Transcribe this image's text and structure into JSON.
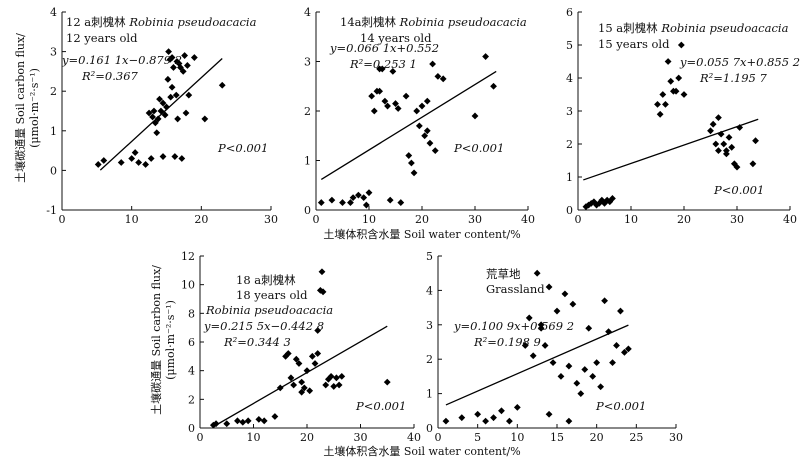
{
  "x_axis_label": "土壤体积含水量 Soil water content/%",
  "y_axis_label_line1": "土壤碳通量 Soil carbon flux/",
  "y_axis_label_line2": "(μmol·m⁻²·s⁻¹)",
  "chart_data": [
    {
      "type": "scatter",
      "panel": "12a",
      "title_cn": "12 a刺槐林",
      "title_latin": "Robinia pseudoacacia",
      "age_label": "12 years old",
      "equation": "y=0.161 1x−0.879 2",
      "r2": "R²=0.367",
      "p_value": "P<0.001",
      "xlim": [
        0,
        30
      ],
      "ylim": [
        -1,
        4
      ],
      "xticks": [
        0,
        10,
        20,
        30
      ],
      "yticks": [
        -1,
        0,
        1,
        2,
        3,
        4
      ],
      "fit": {
        "slope": 0.1611,
        "intercept": -0.8792,
        "x_range": [
          5.5,
          23
        ]
      },
      "points": [
        [
          5.2,
          0.15
        ],
        [
          6,
          0.25
        ],
        [
          8.5,
          0.2
        ],
        [
          10,
          0.3
        ],
        [
          10.5,
          0.45
        ],
        [
          11,
          0.2
        ],
        [
          12,
          0.15
        ],
        [
          12.5,
          1.45
        ],
        [
          12.8,
          0.3
        ],
        [
          13,
          1.35
        ],
        [
          13.2,
          1.5
        ],
        [
          13.4,
          1.2
        ],
        [
          13.6,
          0.95
        ],
        [
          13.8,
          1.3
        ],
        [
          14,
          1.8
        ],
        [
          14.2,
          1.5
        ],
        [
          14.5,
          1.7
        ],
        [
          14.8,
          1.4
        ],
        [
          15,
          1.6
        ],
        [
          15.2,
          2.3
        ],
        [
          15.3,
          3.0
        ],
        [
          15.5,
          2.8
        ],
        [
          15.6,
          1.85
        ],
        [
          15.8,
          2.1
        ],
        [
          16,
          2.6
        ],
        [
          16.2,
          0.35
        ],
        [
          16.4,
          1.9
        ],
        [
          16.6,
          1.3
        ],
        [
          16.8,
          2.7
        ],
        [
          17,
          2.6
        ],
        [
          17.2,
          0.3
        ],
        [
          17.4,
          2.5
        ],
        [
          17.6,
          2.9
        ],
        [
          17.8,
          1.45
        ],
        [
          18,
          2.65
        ],
        [
          18.2,
          1.9
        ],
        [
          19,
          2.85
        ],
        [
          20.5,
          1.3
        ],
        [
          23,
          2.15
        ],
        [
          14.5,
          0.35
        ],
        [
          15.8,
          2.85
        ],
        [
          16.5,
          2.75
        ]
      ]
    },
    {
      "type": "scatter",
      "panel": "14a",
      "title_cn": "14a刺槐林",
      "title_latin": "Robinia pseudoacacia",
      "age_label": "14 years old",
      "equation": "y=0.066 1x+0.552",
      "r2": "R²=0.253 1",
      "p_value": "P<0.001",
      "xlim": [
        0,
        40
      ],
      "ylim": [
        0,
        4
      ],
      "xticks": [
        0,
        10,
        20,
        30,
        40
      ],
      "yticks": [
        0,
        1,
        2,
        3,
        4
      ],
      "fit": {
        "slope": 0.0661,
        "intercept": 0.552,
        "x_range": [
          1,
          34
        ]
      },
      "points": [
        [
          1,
          0.15
        ],
        [
          3,
          0.2
        ],
        [
          5,
          0.15
        ],
        [
          6.5,
          0.15
        ],
        [
          7,
          0.25
        ],
        [
          8,
          0.3
        ],
        [
          9,
          0.25
        ],
        [
          9.5,
          0.1
        ],
        [
          10,
          0.35
        ],
        [
          10.5,
          2.3
        ],
        [
          11,
          2.0
        ],
        [
          11.5,
          2.4
        ],
        [
          12,
          2.85
        ],
        [
          12.5,
          2.85
        ],
        [
          13,
          2.2
        ],
        [
          13.5,
          2.1
        ],
        [
          14,
          0.2
        ],
        [
          14.5,
          2.8
        ],
        [
          15,
          2.15
        ],
        [
          15.5,
          2.05
        ],
        [
          16,
          0.15
        ],
        [
          17,
          2.3
        ],
        [
          17.5,
          1.1
        ],
        [
          18,
          0.95
        ],
        [
          18.5,
          0.75
        ],
        [
          19,
          2.0
        ],
        [
          19.5,
          1.7
        ],
        [
          20,
          2.1
        ],
        [
          20.5,
          1.5
        ],
        [
          21,
          1.6
        ],
        [
          21.5,
          1.35
        ],
        [
          22,
          2.95
        ],
        [
          22.5,
          1.2
        ],
        [
          23,
          2.7
        ],
        [
          24,
          2.65
        ],
        [
          30,
          1.9
        ],
        [
          32,
          3.1
        ],
        [
          33.5,
          2.5
        ],
        [
          12,
          2.4
        ],
        [
          21,
          2.2
        ]
      ]
    },
    {
      "type": "scatter",
      "panel": "15a",
      "title_cn": "15 a刺槐林",
      "title_latin": "Robinia pseudoacacia",
      "age_label": "15 years old",
      "equation": "y=0.055 7x+0.855 2",
      "r2": "R²=1.195 7",
      "p_value": "P<0.001",
      "xlim": [
        0,
        40
      ],
      "ylim": [
        0,
        6
      ],
      "xticks": [
        0,
        10,
        20,
        30,
        40
      ],
      "yticks": [
        0,
        1,
        2,
        3,
        4,
        5,
        6
      ],
      "fit": {
        "slope": 0.0557,
        "intercept": 0.8552,
        "x_range": [
          1,
          34
        ]
      },
      "points": [
        [
          1.5,
          0.1
        ],
        [
          2,
          0.15
        ],
        [
          2.5,
          0.2
        ],
        [
          3,
          0.25
        ],
        [
          3.5,
          0.15
        ],
        [
          4,
          0.2
        ],
        [
          4.5,
          0.3
        ],
        [
          5,
          0.2
        ],
        [
          5.5,
          0.3
        ],
        [
          6,
          0.25
        ],
        [
          6.5,
          0.35
        ],
        [
          15,
          3.2
        ],
        [
          15.5,
          2.9
        ],
        [
          16,
          3.5
        ],
        [
          16.5,
          3.2
        ],
        [
          17,
          4.5
        ],
        [
          17.5,
          3.9
        ],
        [
          18,
          3.6
        ],
        [
          18.5,
          3.6
        ],
        [
          19,
          4.0
        ],
        [
          19.5,
          5.0
        ],
        [
          20,
          3.5
        ],
        [
          25,
          2.4
        ],
        [
          25.5,
          2.6
        ],
        [
          26,
          2.0
        ],
        [
          26.5,
          1.8
        ],
        [
          27,
          2.3
        ],
        [
          27.5,
          2.0
        ],
        [
          28,
          1.7
        ],
        [
          28.5,
          2.2
        ],
        [
          29,
          1.9
        ],
        [
          29.5,
          1.4
        ],
        [
          30,
          1.3
        ],
        [
          30.5,
          2.5
        ],
        [
          33,
          1.4
        ],
        [
          33.5,
          2.1
        ],
        [
          26.5,
          2.8
        ],
        [
          28,
          1.8
        ]
      ]
    },
    {
      "type": "scatter",
      "panel": "18a",
      "title_cn": "18 a刺槐林",
      "title_latin": "Robinia pseudoacacia",
      "age_label": "18 years old",
      "equation": "y=0.215 5x−0.442 8",
      "r2": "R²=0.344 3",
      "p_value": "P<0.001",
      "xlim": [
        0,
        40
      ],
      "ylim": [
        0,
        12
      ],
      "xticks": [
        0,
        10,
        20,
        30,
        40
      ],
      "yticks": [
        0,
        2,
        4,
        6,
        8,
        10,
        12
      ],
      "fit": {
        "slope": 0.2155,
        "intercept": -0.4428,
        "x_range": [
          2.5,
          35
        ]
      },
      "points": [
        [
          2.5,
          0.2
        ],
        [
          3,
          0.3
        ],
        [
          5,
          0.3
        ],
        [
          7,
          0.5
        ],
        [
          8,
          0.4
        ],
        [
          9,
          0.5
        ],
        [
          11,
          0.6
        ],
        [
          12,
          0.5
        ],
        [
          14,
          0.8
        ],
        [
          15,
          2.8
        ],
        [
          16,
          5.0
        ],
        [
          17,
          3.5
        ],
        [
          17.5,
          3.0
        ],
        [
          18,
          4.8
        ],
        [
          18.5,
          4.5
        ],
        [
          19,
          3.2
        ],
        [
          19.5,
          2.8
        ],
        [
          20,
          4.0
        ],
        [
          20.5,
          2.6
        ],
        [
          21,
          5.0
        ],
        [
          21.5,
          4.5
        ],
        [
          22,
          6.8
        ],
        [
          22.5,
          9.6
        ],
        [
          22.8,
          10.9
        ],
        [
          23,
          9.5
        ],
        [
          23.5,
          3.0
        ],
        [
          24,
          3.4
        ],
        [
          24.5,
          3.6
        ],
        [
          25,
          2.9
        ],
        [
          25.5,
          3.5
        ],
        [
          26,
          3.0
        ],
        [
          26.5,
          3.6
        ],
        [
          35,
          3.2
        ],
        [
          16.5,
          5.2
        ],
        [
          19,
          2.5
        ],
        [
          22,
          5.2
        ]
      ]
    },
    {
      "type": "scatter",
      "panel": "grassland",
      "title_cn": "荒草地",
      "title_latin": "Grassland",
      "age_label": "",
      "equation": "y=0.100 9x+0.569 2",
      "r2": "R²=0.198 9",
      "p_value": "P<0.001",
      "xlim": [
        0,
        30
      ],
      "ylim": [
        0,
        5
      ],
      "xticks": [
        0,
        5,
        10,
        15,
        20,
        25,
        30
      ],
      "yticks": [
        0,
        1,
        2,
        3,
        4,
        5
      ],
      "fit": {
        "slope": 0.1009,
        "intercept": 0.5692,
        "x_range": [
          1,
          24
        ]
      },
      "points": [
        [
          1,
          0.2
        ],
        [
          3,
          0.3
        ],
        [
          5,
          0.4
        ],
        [
          6,
          0.2
        ],
        [
          7,
          0.3
        ],
        [
          8,
          0.5
        ],
        [
          9,
          0.2
        ],
        [
          10,
          0.6
        ],
        [
          11,
          2.4
        ],
        [
          11.5,
          3.2
        ],
        [
          12,
          2.1
        ],
        [
          12.5,
          4.5
        ],
        [
          13,
          2.9
        ],
        [
          13.5,
          2.4
        ],
        [
          14,
          4.1
        ],
        [
          14.5,
          1.9
        ],
        [
          15,
          3.4
        ],
        [
          15.5,
          1.5
        ],
        [
          16,
          3.9
        ],
        [
          16.5,
          1.8
        ],
        [
          17,
          3.6
        ],
        [
          17.5,
          1.3
        ],
        [
          18,
          1.0
        ],
        [
          18.5,
          1.7
        ],
        [
          19,
          2.9
        ],
        [
          19.5,
          1.5
        ],
        [
          20,
          1.9
        ],
        [
          20.5,
          1.2
        ],
        [
          21,
          3.7
        ],
        [
          21.5,
          2.8
        ],
        [
          22,
          1.9
        ],
        [
          22.5,
          2.4
        ],
        [
          23,
          3.4
        ],
        [
          23.5,
          2.2
        ],
        [
          24,
          2.3
        ],
        [
          14,
          0.4
        ],
        [
          16.5,
          0.2
        ],
        [
          13,
          3.0
        ]
      ]
    }
  ]
}
